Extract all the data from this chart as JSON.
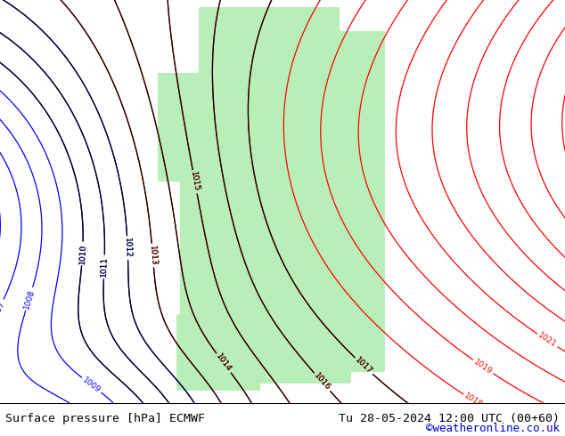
{
  "title_left": "Surface pressure [hPa] ECMWF",
  "title_right": "Tu 28-05-2024 12:00 UTC (00+60)",
  "copyright": "©weatheronline.co.uk",
  "bg_color": "#d0d0d0",
  "land_color": "#b8eeb8",
  "water_color": "#d0d0d0",
  "footer_bg": "#ffffff",
  "footer_text_color": "#000000",
  "copyright_color": "#0000cc",
  "font_size_footer": 9.5,
  "map_bg": "#d0d0d0"
}
